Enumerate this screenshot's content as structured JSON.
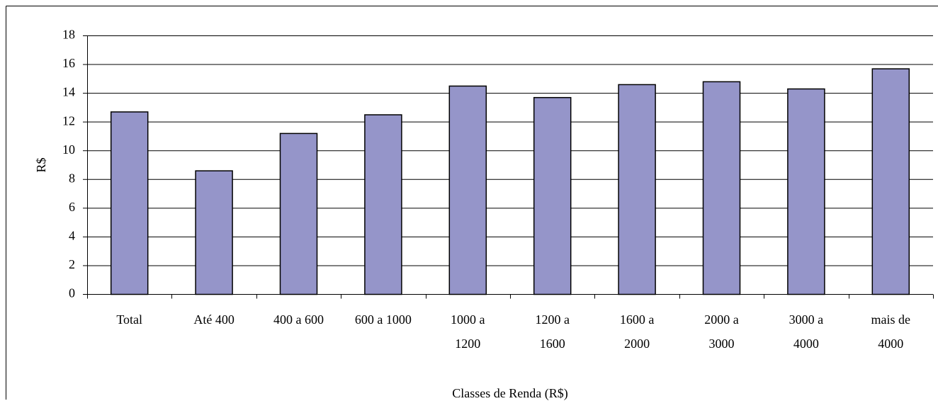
{
  "chart_data": {
    "type": "bar",
    "x_label": "Classes de Renda (R$)",
    "y_label": "R$",
    "categories": [
      "Total",
      "Até 400",
      "400 a 600",
      "600 a 1000",
      "1000 a 1200",
      "1200 a 1600",
      "1600 a 2000",
      "2000 a 3000",
      "3000 a 4000",
      "mais de 4000"
    ],
    "values": [
      12.7,
      8.6,
      11.2,
      12.5,
      14.5,
      13.7,
      14.6,
      14.8,
      14.3,
      15.7
    ],
    "color": "#9595c9",
    "ylim": [
      0,
      18
    ],
    "yticks": [
      0,
      2,
      4,
      6,
      8,
      10,
      12,
      14,
      16,
      18
    ],
    "grid": true
  }
}
